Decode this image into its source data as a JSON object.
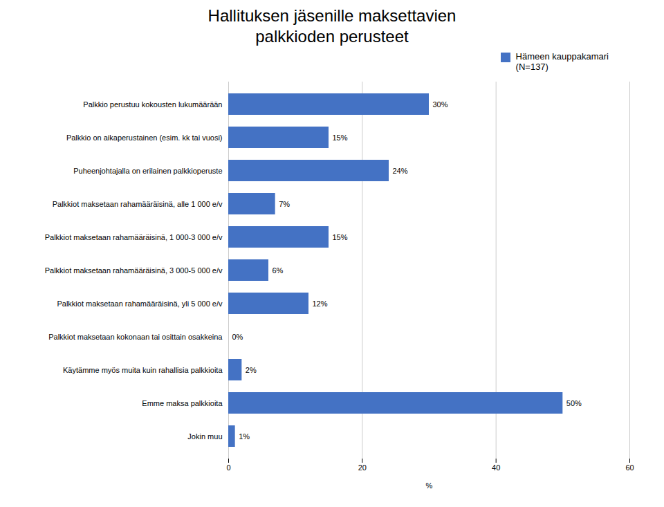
{
  "chart_data": {
    "type": "bar",
    "title": "Hallituksen jäsenille maksettavien\npalkkioden perusteet",
    "orientation": "horizontal",
    "categories": [
      "Palkkio perustuu kokousten lukumäärään",
      "Palkkio on aikaperustainen (esim. kk tai vuosi)",
      "Puheenjohtajalla on erilainen palkkioperuste",
      "Palkkiot maksetaan rahamääräisinä, alle 1 000 e/v",
      "Palkkiot maksetaan rahamääräisinä, 1 000-3 000 e/v",
      "Palkkiot maksetaan rahamääräisinä, 3 000-5 000 e/v",
      "Palkkiot maksetaan rahamääräisinä, yli 5 000 e/v",
      "Palkkiot maksetaan kokonaan tai osittain osakkeina",
      "Käytämme myös muita kuin rahallisia palkkioita",
      "Emme maksa palkkioita",
      "Jokin muu"
    ],
    "series": [
      {
        "name": "Hämeen kauppakamari\n(N=137)",
        "color": "#4472C4",
        "values": [
          30,
          15,
          24,
          7,
          15,
          6,
          12,
          0,
          2,
          50,
          1
        ],
        "value_labels": [
          "30%",
          "15%",
          "24%",
          "7%",
          "15%",
          "6%",
          "12%",
          "0%",
          "2%",
          "50%",
          "1%"
        ]
      }
    ],
    "xlabel": "%",
    "xlim": [
      0,
      60
    ],
    "xticks": [
      0,
      20,
      40,
      60
    ],
    "grid": true,
    "legend": "upper right",
    "data_labels": true
  }
}
